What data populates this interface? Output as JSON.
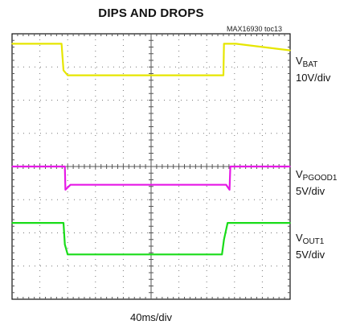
{
  "chart_data": {
    "type": "line",
    "title": "DIPS AND DROPS",
    "figure_id": "MAX16930 toc13",
    "x_scale": "40ms/div",
    "grid": true,
    "x_divisions": 10,
    "y_divisions": 8,
    "series": [
      {
        "name_main": "V",
        "name_sub": "BAT",
        "scale": "10V/div",
        "color": "#e6e600",
        "x": [
          0,
          1.78,
          1.85,
          2.0,
          7.6,
          7.62,
          8.05,
          10
        ],
        "y": [
          7.7,
          7.7,
          6.9,
          6.75,
          6.75,
          7.7,
          7.7,
          7.5
        ]
      },
      {
        "name_main": "V",
        "name_sub": "PGOOD1",
        "scale": "5V/div",
        "color": "#e619e6",
        "x": [
          0,
          1.9,
          1.92,
          2.1,
          7.7,
          7.82,
          7.85,
          8.05,
          10
        ],
        "y": [
          4.0,
          4.0,
          3.3,
          3.45,
          3.45,
          3.3,
          4.0,
          4.0,
          4.0
        ]
      },
      {
        "name_main": "V",
        "name_sub": "OUT1",
        "scale": "5V/div",
        "color": "#19dc19",
        "x": [
          0,
          1.85,
          1.9,
          2.0,
          7.55,
          7.62,
          7.75,
          10
        ],
        "y": [
          2.3,
          2.3,
          1.65,
          1.35,
          1.35,
          1.8,
          2.3,
          2.3
        ]
      }
    ]
  }
}
